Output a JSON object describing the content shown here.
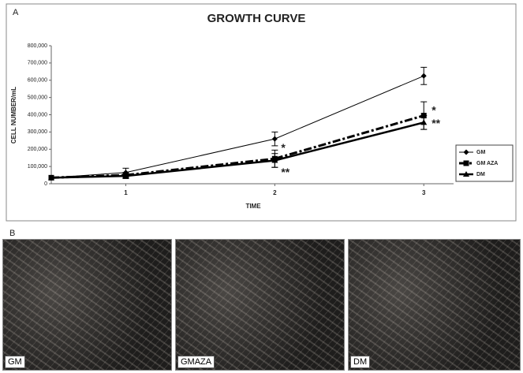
{
  "figure": {
    "panel_a": "A",
    "panel_b": "B",
    "images": [
      "GM",
      "GMAZA",
      "DM"
    ]
  },
  "chart_data": {
    "type": "line",
    "title": "GROWTH CURVE",
    "x_label": "TIME",
    "y_label": "CELL NUMBER/mL",
    "x": [
      0.5,
      1,
      2,
      3
    ],
    "xlim": [
      0.5,
      3.2
    ],
    "xticks": [
      1,
      2,
      3
    ],
    "ylim": [
      0,
      800000
    ],
    "yticks": [
      0,
      {
        "value": 100000,
        "label": "100,000"
      },
      {
        "value": 200000,
        "label": "200,000"
      },
      {
        "value": 300000,
        "label": "300,000"
      },
      {
        "value": 400000,
        "label": "400,000"
      },
      {
        "value": 500000,
        "label": "500,000"
      },
      {
        "value": 600000,
        "label": "600,000"
      },
      {
        "value": 700000,
        "label": "700,000"
      },
      {
        "value": 800000,
        "label": "800,000"
      }
    ],
    "series": [
      {
        "name": "GM",
        "color": "#000000",
        "line_style": "solid",
        "linewidth": 1,
        "marker": "diamond",
        "values": [
          35000,
          65000,
          260000,
          625000
        ],
        "errors": [
          null,
          25000,
          40000,
          50000
        ]
      },
      {
        "name": "GM AZA",
        "color": "#000000",
        "line_style": "dashdot",
        "linewidth": 3,
        "marker": "square",
        "values": [
          35000,
          50000,
          145000,
          395000
        ],
        "errors": [
          null,
          15000,
          50000,
          80000
        ]
      },
      {
        "name": "DM",
        "color": "#000000",
        "line_style": "solid",
        "linewidth": 2.5,
        "marker": "triangle",
        "values": [
          35000,
          45000,
          135000,
          355000
        ],
        "errors": [
          null,
          15000,
          40000,
          40000
        ]
      }
    ],
    "annotations": [
      "*",
      "**",
      "*",
      "**"
    ],
    "legend": "right"
  }
}
